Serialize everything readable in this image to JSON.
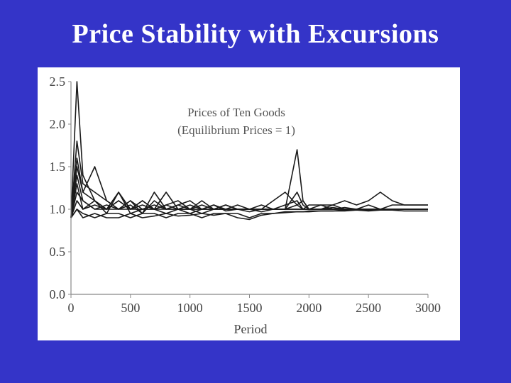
{
  "slide": {
    "title": "Price Stability with Excursions"
  },
  "chart_data": {
    "type": "line",
    "title": "Prices of Ten Goods",
    "subtitle": "(Equilibrium Prices = 1)",
    "xlabel": "Period",
    "ylabel": "",
    "xlim": [
      0,
      3000
    ],
    "ylim": [
      0,
      2.5
    ],
    "x_ticks": [
      "0",
      "500",
      "1000",
      "1500",
      "2000",
      "2500",
      "3000"
    ],
    "y_ticks": [
      "0.0",
      "0.5",
      "1.0",
      "1.5",
      "2.0",
      "2.5"
    ],
    "legend": "none",
    "grid": false,
    "line_color": "#1a1a1a",
    "num_series": 10,
    "x": [
      0,
      50,
      100,
      200,
      300,
      400,
      500,
      600,
      700,
      800,
      900,
      1000,
      1100,
      1200,
      1300,
      1400,
      1500,
      1600,
      1700,
      1800,
      1900,
      1950,
      2000,
      2100,
      2200,
      2300,
      2400,
      2500,
      2600,
      2700,
      2800,
      2900,
      3000
    ],
    "series": [
      {
        "values": [
          0.9,
          1.8,
          1.3,
          1.2,
          1.1,
          1.0,
          1.05,
          0.95,
          1.1,
          1.0,
          1.0,
          0.95,
          1.0,
          1.05,
          0.98,
          1.0,
          1.0,
          0.97,
          1.0,
          1.0,
          1.05,
          1.0,
          1.0,
          1.0,
          1.02,
          1.0,
          1.0,
          1.0,
          1.0,
          1.0,
          1.0,
          1.0,
          1.0
        ]
      },
      {
        "values": [
          0.9,
          2.5,
          1.4,
          1.1,
          0.95,
          1.2,
          1.0,
          1.1,
          1.0,
          1.2,
          1.0,
          1.0,
          1.1,
          1.0,
          1.0,
          1.05,
          1.0,
          1.0,
          1.0,
          1.0,
          1.0,
          1.0,
          1.0,
          1.0,
          1.0,
          1.0,
          1.0,
          1.0,
          1.0,
          1.0,
          1.0,
          1.0,
          1.0
        ]
      },
      {
        "values": [
          0.9,
          1.5,
          1.2,
          1.5,
          1.1,
          1.0,
          1.1,
          1.0,
          1.0,
          1.05,
          1.1,
          1.0,
          1.0,
          1.05,
          1.0,
          1.0,
          1.0,
          1.05,
          1.0,
          1.0,
          1.2,
          1.05,
          1.0,
          1.0,
          1.0,
          1.0,
          1.0,
          1.0,
          1.0,
          1.0,
          1.0,
          1.0,
          1.0
        ]
      },
      {
        "values": [
          0.9,
          1.3,
          1.0,
          1.1,
          1.0,
          1.2,
          0.95,
          1.0,
          1.0,
          0.95,
          1.0,
          1.0,
          0.95,
          1.0,
          1.0,
          1.0,
          0.97,
          1.0,
          1.0,
          1.0,
          1.7,
          1.1,
          1.0,
          1.05,
          1.0,
          1.0,
          1.0,
          1.0,
          1.0,
          1.0,
          1.0,
          1.0,
          1.0
        ]
      },
      {
        "values": [
          0.9,
          1.2,
          1.1,
          1.0,
          1.0,
          1.0,
          1.1,
          0.95,
          1.2,
          1.0,
          1.05,
          1.1,
          1.0,
          1.0,
          1.05,
          1.0,
          1.0,
          1.0,
          1.0,
          1.0,
          1.0,
          1.0,
          1.0,
          1.0,
          1.0,
          1.0,
          1.0,
          1.0,
          1.0,
          1.0,
          1.0,
          1.0,
          1.0
        ]
      },
      {
        "values": [
          0.9,
          1.0,
          0.9,
          0.95,
          0.9,
          0.9,
          0.95,
          0.9,
          0.92,
          0.95,
          0.92,
          0.93,
          0.95,
          0.93,
          0.95,
          0.9,
          0.88,
          0.93,
          0.95,
          0.96,
          0.97,
          0.97,
          0.97,
          0.98,
          0.98,
          0.99,
          0.99,
          0.99,
          1.0,
          1.0,
          1.0,
          1.0,
          1.0
        ]
      },
      {
        "values": [
          0.9,
          1.1,
          1.0,
          1.05,
          1.0,
          1.1,
          1.0,
          1.05,
          1.0,
          1.0,
          1.05,
          1.0,
          1.05,
          1.0,
          1.0,
          1.0,
          1.0,
          1.0,
          1.0,
          1.05,
          1.1,
          1.0,
          1.05,
          1.05,
          1.05,
          1.1,
          1.05,
          1.1,
          1.2,
          1.1,
          1.05,
          1.05,
          1.05
        ]
      },
      {
        "values": [
          0.9,
          1.4,
          1.1,
          1.0,
          1.05,
          1.0,
          1.0,
          1.0,
          1.05,
          1.0,
          1.0,
          1.05,
          1.0,
          1.0,
          1.0,
          1.0,
          1.0,
          1.0,
          1.1,
          1.2,
          1.05,
          1.1,
          1.0,
          1.0,
          1.05,
          1.0,
          1.0,
          1.05,
          1.0,
          1.05,
          1.05,
          1.05,
          1.05
        ]
      },
      {
        "values": [
          0.9,
          1.0,
          0.95,
          0.9,
          0.95,
          0.95,
          0.9,
          0.95,
          0.95,
          0.9,
          0.95,
          0.95,
          0.9,
          0.95,
          0.95,
          0.95,
          0.9,
          0.95,
          0.95,
          0.97,
          0.97,
          0.97,
          0.98,
          0.98,
          0.98,
          0.98,
          0.99,
          0.98,
          0.99,
          0.99,
          0.98,
          0.98,
          0.98
        ]
      },
      {
        "values": [
          0.9,
          1.6,
          1.2,
          1.1,
          1.0,
          1.1,
          1.0,
          1.1,
          1.0,
          1.05,
          1.0,
          1.0,
          1.0,
          1.0,
          1.05,
          1.0,
          1.0,
          1.0,
          1.0,
          1.0,
          1.0,
          1.0,
          1.0,
          1.0,
          1.0,
          1.02,
          1.0,
          1.0,
          1.0,
          1.0,
          1.0,
          1.0,
          1.0
        ]
      }
    ]
  }
}
